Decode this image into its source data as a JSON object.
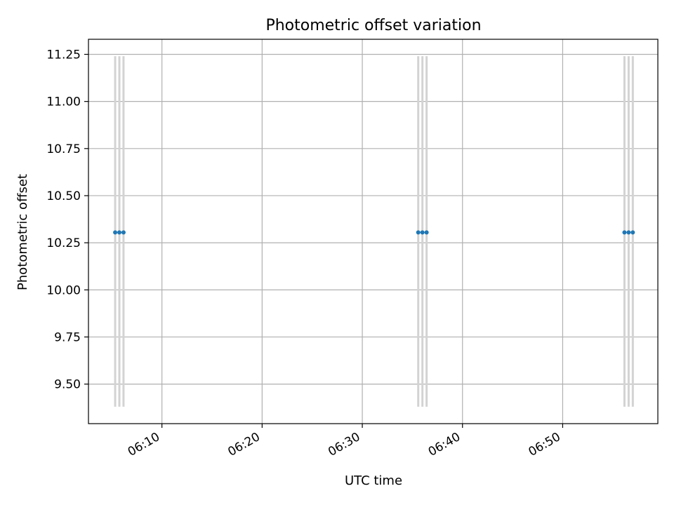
{
  "chart_data": {
    "type": "scatter",
    "title": "Photometric offset variation",
    "xlabel": "UTC time",
    "ylabel": "Photometric offset",
    "xlim": [
      "06:02:40",
      "06:59:30"
    ],
    "ylim": [
      9.29,
      11.33
    ],
    "x_ticks": [
      "06:10",
      "06:20",
      "06:30",
      "06:40",
      "06:50"
    ],
    "y_ticks": [
      "9.50",
      "9.75",
      "10.00",
      "10.25",
      "10.50",
      "10.75",
      "11.00",
      "11.25"
    ],
    "grid": true,
    "colors": {
      "points": "#1f77b4",
      "error_bars": "#d3d3d3",
      "grid": "#b0b0b0"
    },
    "series": [
      {
        "x": [
          "06:05:20",
          "06:05:45",
          "06:06:10",
          "06:35:35",
          "06:36:00",
          "06:36:25",
          "06:56:10",
          "06:56:35",
          "06:57:00"
        ],
        "y": [
          10.305,
          10.305,
          10.305,
          10.305,
          10.305,
          10.305,
          10.305,
          10.305,
          10.305
        ],
        "yerr_low": [
          9.38,
          9.38,
          9.38,
          9.38,
          9.38,
          9.38,
          9.38,
          9.38,
          9.38
        ],
        "yerr_high": [
          11.24,
          11.24,
          11.24,
          11.24,
          11.24,
          11.24,
          11.24,
          11.24,
          11.24
        ]
      }
    ]
  }
}
